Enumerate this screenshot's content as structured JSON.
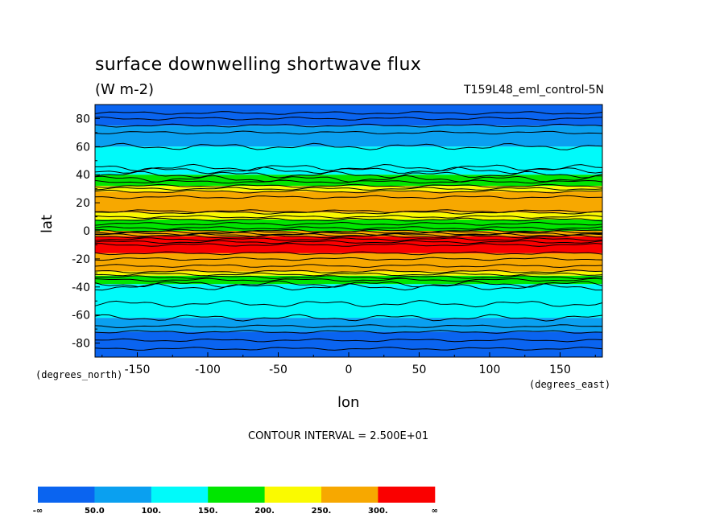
{
  "chart_data": {
    "type": "heatmap",
    "title": "surface downwelling shortwave flux",
    "subtitle": "(W m-2)",
    "run_label": "T159L48_eml_control-5N",
    "xlabel": "lon",
    "ylabel": "lat",
    "x_units": "(degrees_east)",
    "y_units": "(degrees_north)",
    "xlim": [
      -180,
      180
    ],
    "ylim": [
      -90,
      90
    ],
    "x_ticks": [
      -150,
      -100,
      -50,
      0,
      50,
      100,
      150
    ],
    "x_tick_labels": [
      "-150",
      "-100",
      "-50",
      "0",
      "50",
      "100",
      "150"
    ],
    "y_ticks": [
      80,
      60,
      40,
      20,
      0,
      -20,
      -40,
      -60,
      -80
    ],
    "y_tick_labels": [
      "80",
      "60",
      "40",
      "20",
      "0",
      "-20",
      "-40",
      "-60",
      "-80"
    ],
    "contour_interval_label": "CONTOUR INTERVAL = 2.500E+01",
    "colorbar": {
      "colors": [
        "#0a64f0",
        "#0aa0f0",
        "#00fafa",
        "#00e600",
        "#fafa00",
        "#f7a800",
        "#fa0000"
      ],
      "labels": [
        "-∞",
        "50.0",
        "100.",
        "150.",
        "200.",
        "250.",
        "300.",
        "∞"
      ]
    },
    "lat_profile": [
      {
        "lat_from": 90,
        "lat_to": 75,
        "value": 25
      },
      {
        "lat_from": 75,
        "lat_to": 60,
        "value": 75
      },
      {
        "lat_from": 60,
        "lat_to": 40,
        "value": 125
      },
      {
        "lat_from": 40,
        "lat_to": 32,
        "value": 175
      },
      {
        "lat_from": 32,
        "lat_to": 28,
        "value": 225
      },
      {
        "lat_from": 28,
        "lat_to": 13,
        "value": 275
      },
      {
        "lat_from": 13,
        "lat_to": 8,
        "value": 225
      },
      {
        "lat_from": 8,
        "lat_to": 0,
        "value": 175
      },
      {
        "lat_from": 0,
        "lat_to": -4,
        "value": 275
      },
      {
        "lat_from": -4,
        "lat_to": -16,
        "value": 325
      },
      {
        "lat_from": -16,
        "lat_to": -29,
        "value": 275
      },
      {
        "lat_from": -29,
        "lat_to": -32,
        "value": 225
      },
      {
        "lat_from": -32,
        "lat_to": -38,
        "value": 175
      },
      {
        "lat_from": -38,
        "lat_to": -62,
        "value": 125
      },
      {
        "lat_from": -62,
        "lat_to": -72,
        "value": 75
      },
      {
        "lat_from": -72,
        "lat_to": -90,
        "value": 25
      }
    ],
    "contour_lats": [
      84,
      80,
      75,
      70,
      60,
      45,
      43,
      40,
      37,
      35,
      32,
      30,
      28,
      24,
      14,
      13,
      10,
      8,
      5,
      2,
      0,
      -1,
      -2,
      -3,
      -4,
      -6,
      -8,
      -10,
      -16,
      -20,
      -25,
      -29,
      -31,
      -33,
      -35,
      -38,
      -40,
      -52,
      -62,
      -68,
      -72,
      -78,
      -84
    ]
  }
}
